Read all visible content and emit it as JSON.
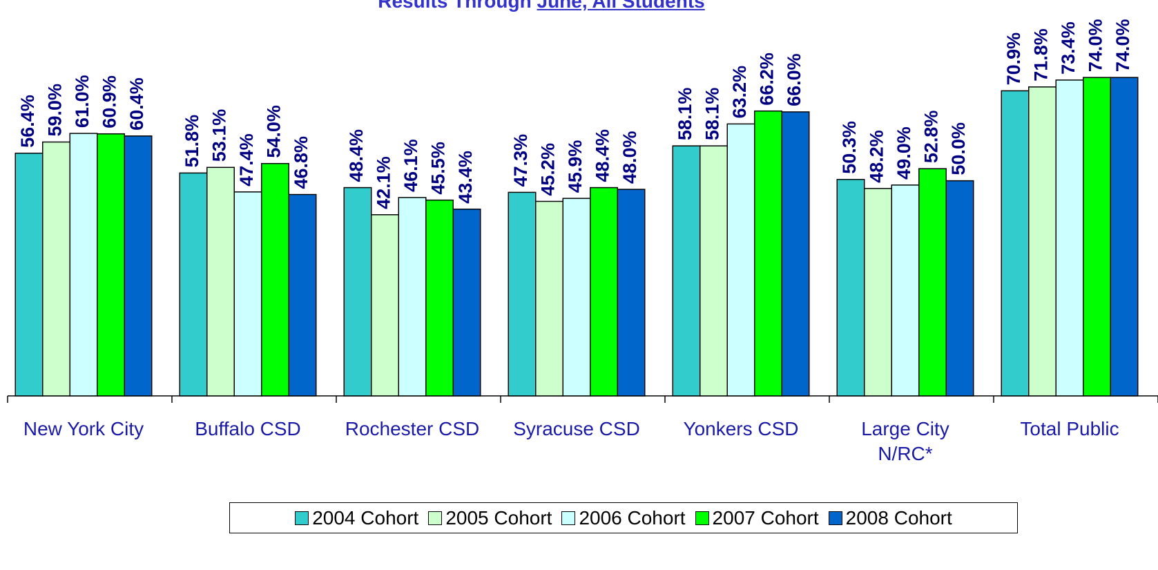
{
  "chart_data": {
    "type": "bar",
    "title": [
      "Results Through",
      "June, All Students"
    ],
    "categories": [
      "New York City",
      "Buffalo CSD",
      "Rochester CSD",
      "Syracuse CSD",
      "Yonkers CSD",
      "Large City\nN/RC*",
      "Total Public"
    ],
    "series": [
      {
        "name": "2004 Cohort",
        "color": "#33cccc",
        "values": [
          56.4,
          51.8,
          48.4,
          47.3,
          58.1,
          50.3,
          70.9
        ],
        "value_labels": [
          "56.4%",
          "51.8%",
          "48.4%",
          "47.3%",
          "58.1%",
          "50.3%",
          "70.9%"
        ]
      },
      {
        "name": "2005 Cohort",
        "color": "#ccffcc",
        "values": [
          59.0,
          53.1,
          42.1,
          45.2,
          58.1,
          48.2,
          71.8
        ],
        "value_labels": [
          "59.0%",
          "53.1%",
          "42.1%",
          "45.2%",
          "58.1%",
          "48.2%",
          "71.8%"
        ]
      },
      {
        "name": "2006 Cohort",
        "color": "#ccffff",
        "values": [
          61.0,
          47.4,
          46.1,
          45.9,
          63.2,
          49.0,
          73.4
        ],
        "value_labels": [
          "61.0%",
          "47.4%",
          "46.1%",
          "45.9%",
          "63.2%",
          "49.0%",
          "73.4%"
        ]
      },
      {
        "name": "2007 Cohort",
        "color": "#00ff00",
        "values": [
          60.9,
          54.0,
          45.5,
          48.4,
          66.2,
          52.8,
          74.0
        ],
        "value_labels": [
          "60.9%",
          "54.0%",
          "45.5%",
          "48.4%",
          "66.2%",
          "52.8%",
          "74.0%"
        ]
      },
      {
        "name": "2008 Cohort",
        "color": "#0066cc",
        "values": [
          60.4,
          46.8,
          43.4,
          48.0,
          66.0,
          50.0,
          74.0
        ],
        "value_labels": [
          "60.4%",
          "46.8%",
          "43.4%",
          "48.0%",
          "66.0%",
          "50.0%",
          "74.0%"
        ]
      }
    ],
    "ylim": [
      0,
      92
    ],
    "legend": "bottom"
  }
}
